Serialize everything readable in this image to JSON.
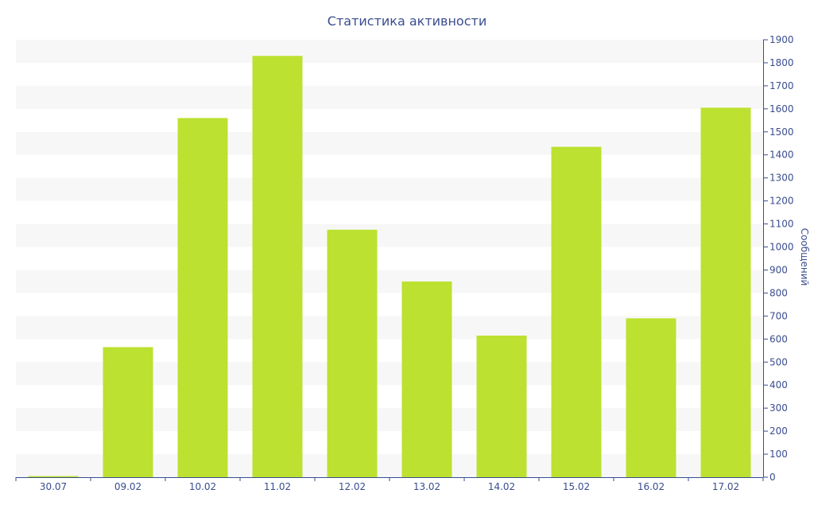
{
  "chart_data": {
    "type": "bar",
    "title": "Статистика активности",
    "xlabel": "",
    "ylabel": "Сообщений",
    "categories": [
      "30.07",
      "09.02",
      "10.02",
      "11.02",
      "12.02",
      "13.02",
      "14.02",
      "15.02",
      "16.02",
      "17.02"
    ],
    "values": [
      5,
      565,
      1560,
      1830,
      1075,
      850,
      615,
      1435,
      690,
      1605
    ],
    "ylim": [
      0,
      1900
    ],
    "yticks": [
      0,
      100,
      200,
      300,
      400,
      500,
      600,
      700,
      800,
      900,
      1000,
      1100,
      1200,
      1300,
      1400,
      1500,
      1600,
      1700,
      1800,
      1900
    ],
    "y_axis_position": "right",
    "grid": "alternating horizontal bands",
    "colors": {
      "bar": "#bce130",
      "band": "#f7f7f7",
      "axis": "#3a4d8f",
      "text": "#3a4d8f"
    }
  }
}
